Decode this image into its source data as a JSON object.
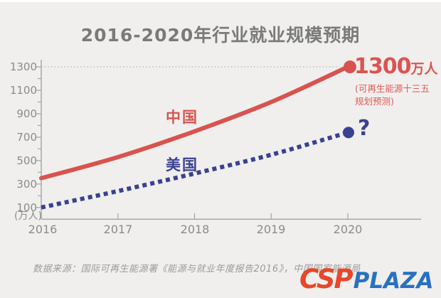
{
  "title": "2016-2020年行业就业规模预期",
  "chart_data": {
    "type": "line",
    "title": "2016-2020年行业就业规模预期",
    "categories": [
      "2016",
      "2017",
      "2018",
      "2019",
      "2020"
    ],
    "series": [
      {
        "name": "中国",
        "values": [
          350,
          530,
          750,
          1000,
          1300
        ],
        "color": "#d9534e",
        "style": "solid",
        "endpoint_marker": true
      },
      {
        "name": "美国",
        "values": [
          100,
          240,
          390,
          550,
          740
        ],
        "color": "#3a4191",
        "style": "dotted",
        "endpoint_marker": true
      }
    ],
    "xlabel": "",
    "ylabel": "(万人)",
    "ylim": [
      0,
      1400
    ],
    "yticks_labeled": [
      100,
      300,
      500,
      700,
      900,
      1100,
      1300
    ],
    "ytick_minor_step": 100,
    "dotted_gridline_at": 1300,
    "grid": "off (single dotted reference line at 1300)",
    "legend_position": "inline labels next to lines"
  },
  "axis": {
    "y_labels": [
      "1300",
      "1100",
      "900",
      "700",
      "500",
      "300",
      "100"
    ],
    "y_unit": "(万人)",
    "x_labels": [
      "2016",
      "2017",
      "2018",
      "2019",
      "2020"
    ]
  },
  "labels": {
    "china": "中国",
    "us": "美国",
    "endpoint_value": "1300",
    "endpoint_unit": "万人",
    "endpoint_note": "(可再生能源十三五\n规划预测)",
    "question_mark": "?"
  },
  "footer": {
    "source": "数据来源：国际可再生能源署《能源与就业年度报告2016》，中国国家能源局"
  },
  "logo": {
    "csp": "CSP",
    "plaza": "PLAZA"
  },
  "colors": {
    "china_line": "#d9534e",
    "us_line": "#3a4191",
    "annotation_red": "#dc5450",
    "background": "#f0efee",
    "axis": "#a9a9a9",
    "title": "#7a7a7a",
    "logo_csp": "#e8472b",
    "logo_plaza": "#2a70c0"
  }
}
